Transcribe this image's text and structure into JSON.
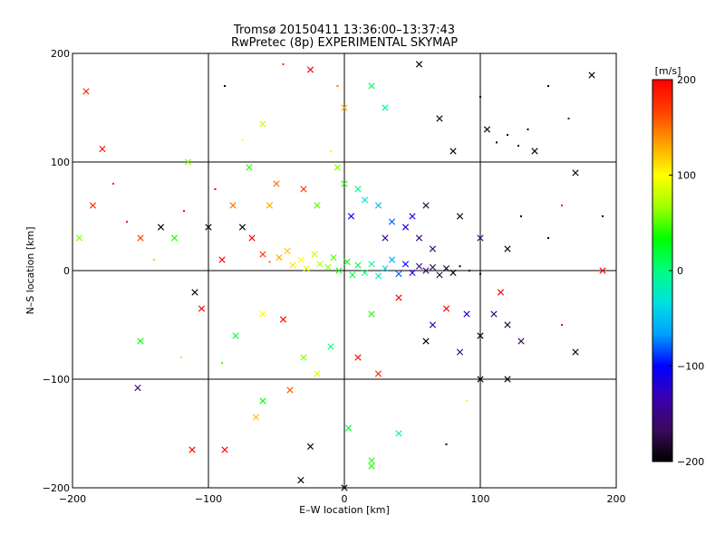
{
  "chart_data": {
    "type": "scatter",
    "title": "Tromsø 20150411 13:36:00–13:37:43",
    "subtitle": "RwPretec (8p) EXPERIMENTAL SKYMAP",
    "xlabel": "E–W location [km]",
    "ylabel": "N–S location [km]",
    "xlim": [
      -200,
      200
    ],
    "ylim": [
      -200,
      200
    ],
    "xticks": [
      -200,
      -100,
      0,
      100,
      200
    ],
    "yticks": [
      -200,
      -100,
      0,
      100,
      200
    ],
    "grid": true,
    "colorbar": {
      "label": "[m/s]",
      "range": [
        -200,
        200
      ],
      "ticks": [
        200,
        100,
        0,
        -100,
        -200
      ],
      "colormap": [
        "#000000",
        "#3a0a5a",
        "#3a00b0",
        "#0000ff",
        "#00a0ff",
        "#00e0e0",
        "#00ff80",
        "#00ff00",
        "#a0ff00",
        "#ffff00",
        "#ffa000",
        "#ff4000",
        "#ff0000"
      ]
    },
    "markers": {
      "small": "dot",
      "large": "x"
    },
    "points": [
      {
        "x": -190,
        "y": 165,
        "v": 180,
        "m": "x"
      },
      {
        "x": -178,
        "y": 112,
        "v": 190,
        "m": "x"
      },
      {
        "x": -185,
        "y": 60,
        "v": 175,
        "m": "x"
      },
      {
        "x": -170,
        "y": 80,
        "v": 185,
        "m": "dot"
      },
      {
        "x": -160,
        "y": 45,
        "v": 200,
        "m": "dot"
      },
      {
        "x": -150,
        "y": 30,
        "v": 170,
        "m": "x"
      },
      {
        "x": -195,
        "y": 30,
        "v": 60,
        "m": "x"
      },
      {
        "x": -140,
        "y": 10,
        "v": 120,
        "m": "dot"
      },
      {
        "x": -135,
        "y": 40,
        "v": -200,
        "m": "x"
      },
      {
        "x": -125,
        "y": 30,
        "v": 40,
        "m": "x"
      },
      {
        "x": -118,
        "y": 55,
        "v": 200,
        "m": "dot"
      },
      {
        "x": -110,
        "y": -20,
        "v": -200,
        "m": "x"
      },
      {
        "x": -105,
        "y": -35,
        "v": 200,
        "m": "x"
      },
      {
        "x": -150,
        "y": -65,
        "v": 30,
        "m": "x"
      },
      {
        "x": -152,
        "y": -108,
        "v": -160,
        "m": "x"
      },
      {
        "x": -112,
        "y": -165,
        "v": 200,
        "m": "x"
      },
      {
        "x": -88,
        "y": -165,
        "v": 200,
        "m": "x"
      },
      {
        "x": -88,
        "y": 170,
        "v": -200,
        "m": "dot"
      },
      {
        "x": -95,
        "y": 75,
        "v": 200,
        "m": "dot"
      },
      {
        "x": -82,
        "y": 60,
        "v": 150,
        "m": "x"
      },
      {
        "x": -75,
        "y": 40,
        "v": -200,
        "m": "x"
      },
      {
        "x": -68,
        "y": 30,
        "v": 200,
        "m": "x"
      },
      {
        "x": -60,
        "y": 15,
        "v": 170,
        "m": "x"
      },
      {
        "x": -55,
        "y": 8,
        "v": 150,
        "m": "dot"
      },
      {
        "x": -48,
        "y": 12,
        "v": 130,
        "m": "x"
      },
      {
        "x": -42,
        "y": 18,
        "v": 120,
        "m": "x"
      },
      {
        "x": -38,
        "y": 5,
        "v": 110,
        "m": "x"
      },
      {
        "x": -32,
        "y": 10,
        "v": 100,
        "m": "x"
      },
      {
        "x": -28,
        "y": 2,
        "v": 90,
        "m": "x"
      },
      {
        "x": -22,
        "y": 15,
        "v": 80,
        "m": "x"
      },
      {
        "x": -18,
        "y": 6,
        "v": 70,
        "m": "x"
      },
      {
        "x": -12,
        "y": 3,
        "v": 60,
        "m": "x"
      },
      {
        "x": -8,
        "y": 12,
        "v": 50,
        "m": "x"
      },
      {
        "x": -4,
        "y": 0,
        "v": 40,
        "m": "x"
      },
      {
        "x": 2,
        "y": 8,
        "v": 30,
        "m": "x"
      },
      {
        "x": 6,
        "y": -4,
        "v": 20,
        "m": "x"
      },
      {
        "x": 10,
        "y": 5,
        "v": 10,
        "m": "x"
      },
      {
        "x": 15,
        "y": -2,
        "v": 0,
        "m": "x"
      },
      {
        "x": 20,
        "y": 6,
        "v": -10,
        "m": "x"
      },
      {
        "x": 25,
        "y": -5,
        "v": -20,
        "m": "x"
      },
      {
        "x": 30,
        "y": 2,
        "v": -40,
        "m": "x"
      },
      {
        "x": 35,
        "y": 10,
        "v": -60,
        "m": "x"
      },
      {
        "x": 40,
        "y": -3,
        "v": -80,
        "m": "x"
      },
      {
        "x": 45,
        "y": 6,
        "v": -100,
        "m": "x"
      },
      {
        "x": 50,
        "y": -2,
        "v": -120,
        "m": "x"
      },
      {
        "x": 55,
        "y": 4,
        "v": -140,
        "m": "x"
      },
      {
        "x": 60,
        "y": 0,
        "v": -160,
        "m": "x"
      },
      {
        "x": 65,
        "y": 3,
        "v": -170,
        "m": "x"
      },
      {
        "x": 70,
        "y": -4,
        "v": -180,
        "m": "x"
      },
      {
        "x": 75,
        "y": 2,
        "v": -190,
        "m": "x"
      },
      {
        "x": 80,
        "y": -2,
        "v": -200,
        "m": "x"
      },
      {
        "x": 85,
        "y": 4,
        "v": -200,
        "m": "dot"
      },
      {
        "x": 92,
        "y": 0,
        "v": -200,
        "m": "dot"
      },
      {
        "x": 100,
        "y": -3,
        "v": -200,
        "m": "dot"
      },
      {
        "x": 45,
        "y": 40,
        "v": -110,
        "m": "x"
      },
      {
        "x": 55,
        "y": 30,
        "v": -150,
        "m": "x"
      },
      {
        "x": 65,
        "y": 20,
        "v": -160,
        "m": "x"
      },
      {
        "x": 35,
        "y": 45,
        "v": -80,
        "m": "x"
      },
      {
        "x": 25,
        "y": 60,
        "v": -50,
        "m": "x"
      },
      {
        "x": 15,
        "y": 65,
        "v": -30,
        "m": "x"
      },
      {
        "x": 10,
        "y": 75,
        "v": 0,
        "m": "x"
      },
      {
        "x": 0,
        "y": 80,
        "v": 40,
        "m": "x"
      },
      {
        "x": -5,
        "y": 95,
        "v": 60,
        "m": "x"
      },
      {
        "x": -10,
        "y": 110,
        "v": 100,
        "m": "dot"
      },
      {
        "x": 0,
        "y": 150,
        "v": 130,
        "m": "x"
      },
      {
        "x": -5,
        "y": 170,
        "v": 150,
        "m": "dot"
      },
      {
        "x": -25,
        "y": 185,
        "v": 200,
        "m": "x"
      },
      {
        "x": -45,
        "y": 190,
        "v": 180,
        "m": "dot"
      },
      {
        "x": 20,
        "y": 170,
        "v": 10,
        "m": "x"
      },
      {
        "x": 30,
        "y": 150,
        "v": -20,
        "m": "x"
      },
      {
        "x": 55,
        "y": 190,
        "v": -200,
        "m": "x"
      },
      {
        "x": 70,
        "y": 140,
        "v": -200,
        "m": "x"
      },
      {
        "x": 80,
        "y": 110,
        "v": -200,
        "m": "x"
      },
      {
        "x": 100,
        "y": 160,
        "v": -200,
        "m": "dot"
      },
      {
        "x": 105,
        "y": 130,
        "v": -200,
        "m": "x"
      },
      {
        "x": 112,
        "y": 118,
        "v": -200,
        "m": "dot"
      },
      {
        "x": 120,
        "y": 125,
        "v": -200,
        "m": "dot"
      },
      {
        "x": 128,
        "y": 115,
        "v": -200,
        "m": "dot"
      },
      {
        "x": 135,
        "y": 130,
        "v": -200,
        "m": "dot"
      },
      {
        "x": 140,
        "y": 110,
        "v": -200,
        "m": "x"
      },
      {
        "x": 150,
        "y": 170,
        "v": -200,
        "m": "dot"
      },
      {
        "x": 165,
        "y": 140,
        "v": -150,
        "m": "dot"
      },
      {
        "x": 170,
        "y": 90,
        "v": -200,
        "m": "x"
      },
      {
        "x": 182,
        "y": 180,
        "v": -200,
        "m": "x"
      },
      {
        "x": 160,
        "y": 60,
        "v": 200,
        "m": "dot"
      },
      {
        "x": 150,
        "y": 30,
        "v": -200,
        "m": "dot"
      },
      {
        "x": 130,
        "y": 50,
        "v": -200,
        "m": "dot"
      },
      {
        "x": 190,
        "y": 50,
        "v": -200,
        "m": "dot"
      },
      {
        "x": 190,
        "y": 0,
        "v": 200,
        "m": "x"
      },
      {
        "x": 120,
        "y": 20,
        "v": -200,
        "m": "x"
      },
      {
        "x": 115,
        "y": -20,
        "v": 200,
        "m": "x"
      },
      {
        "x": 110,
        "y": -40,
        "v": -150,
        "m": "x"
      },
      {
        "x": 120,
        "y": -50,
        "v": -180,
        "m": "x"
      },
      {
        "x": 130,
        "y": -65,
        "v": -170,
        "m": "x"
      },
      {
        "x": 100,
        "y": -60,
        "v": -200,
        "m": "x"
      },
      {
        "x": 90,
        "y": -40,
        "v": -120,
        "m": "x"
      },
      {
        "x": 75,
        "y": -35,
        "v": 200,
        "m": "x"
      },
      {
        "x": 65,
        "y": -50,
        "v": -130,
        "m": "x"
      },
      {
        "x": 60,
        "y": -65,
        "v": -200,
        "m": "x"
      },
      {
        "x": 85,
        "y": -75,
        "v": -160,
        "m": "x"
      },
      {
        "x": 170,
        "y": -75,
        "v": -200,
        "m": "x"
      },
      {
        "x": 160,
        "y": -50,
        "v": 200,
        "m": "dot"
      },
      {
        "x": 100,
        "y": -100,
        "v": -200,
        "m": "x"
      },
      {
        "x": 120,
        "y": -100,
        "v": -200,
        "m": "x"
      },
      {
        "x": 90,
        "y": -120,
        "v": 100,
        "m": "dot"
      },
      {
        "x": 75,
        "y": -160,
        "v": -200,
        "m": "dot"
      },
      {
        "x": 40,
        "y": -150,
        "v": 0,
        "m": "x"
      },
      {
        "x": 20,
        "y": -175,
        "v": 40,
        "m": "x"
      },
      {
        "x": 20,
        "y": -180,
        "v": 40,
        "m": "x"
      },
      {
        "x": 3,
        "y": -145,
        "v": 20,
        "m": "x"
      },
      {
        "x": -25,
        "y": -162,
        "v": -200,
        "m": "x"
      },
      {
        "x": -32,
        "y": -193,
        "v": -200,
        "m": "x"
      },
      {
        "x": 0,
        "y": -200,
        "v": -200,
        "m": "x"
      },
      {
        "x": -60,
        "y": -120,
        "v": 30,
        "m": "x"
      },
      {
        "x": -65,
        "y": -135,
        "v": 120,
        "m": "x"
      },
      {
        "x": -40,
        "y": -110,
        "v": 160,
        "m": "x"
      },
      {
        "x": -30,
        "y": -80,
        "v": 60,
        "m": "x"
      },
      {
        "x": -20,
        "y": -95,
        "v": 90,
        "m": "x"
      },
      {
        "x": -10,
        "y": -70,
        "v": 0,
        "m": "x"
      },
      {
        "x": 10,
        "y": -80,
        "v": 200,
        "m": "x"
      },
      {
        "x": 25,
        "y": -95,
        "v": 180,
        "m": "x"
      },
      {
        "x": 20,
        "y": -40,
        "v": 40,
        "m": "x"
      },
      {
        "x": 40,
        "y": -25,
        "v": 200,
        "m": "x"
      },
      {
        "x": -80,
        "y": -60,
        "v": 20,
        "m": "x"
      },
      {
        "x": -90,
        "y": -85,
        "v": 50,
        "m": "dot"
      },
      {
        "x": -120,
        "y": -80,
        "v": 80,
        "m": "dot"
      },
      {
        "x": -60,
        "y": -40,
        "v": 100,
        "m": "x"
      },
      {
        "x": -45,
        "y": -45,
        "v": 200,
        "m": "x"
      },
      {
        "x": -100,
        "y": 40,
        "v": -200,
        "m": "x"
      },
      {
        "x": -90,
        "y": 10,
        "v": 200,
        "m": "x"
      },
      {
        "x": -55,
        "y": 60,
        "v": 130,
        "m": "x"
      },
      {
        "x": -70,
        "y": 95,
        "v": 40,
        "m": "x"
      },
      {
        "x": -115,
        "y": 100,
        "v": 60,
        "m": "x"
      },
      {
        "x": -60,
        "y": 135,
        "v": 80,
        "m": "x"
      },
      {
        "x": -75,
        "y": 120,
        "v": 100,
        "m": "dot"
      },
      {
        "x": -50,
        "y": 80,
        "v": 150,
        "m": "x"
      },
      {
        "x": -30,
        "y": 75,
        "v": 170,
        "m": "x"
      },
      {
        "x": -20,
        "y": 60,
        "v": 50,
        "m": "x"
      },
      {
        "x": 5,
        "y": 50,
        "v": -100,
        "m": "x"
      },
      {
        "x": 30,
        "y": 30,
        "v": -140,
        "m": "x"
      },
      {
        "x": 50,
        "y": 50,
        "v": -120,
        "m": "x"
      },
      {
        "x": 60,
        "y": 60,
        "v": -180,
        "m": "x"
      },
      {
        "x": 85,
        "y": 50,
        "v": -200,
        "m": "x"
      },
      {
        "x": 100,
        "y": 30,
        "v": -150,
        "m": "x"
      }
    ]
  }
}
